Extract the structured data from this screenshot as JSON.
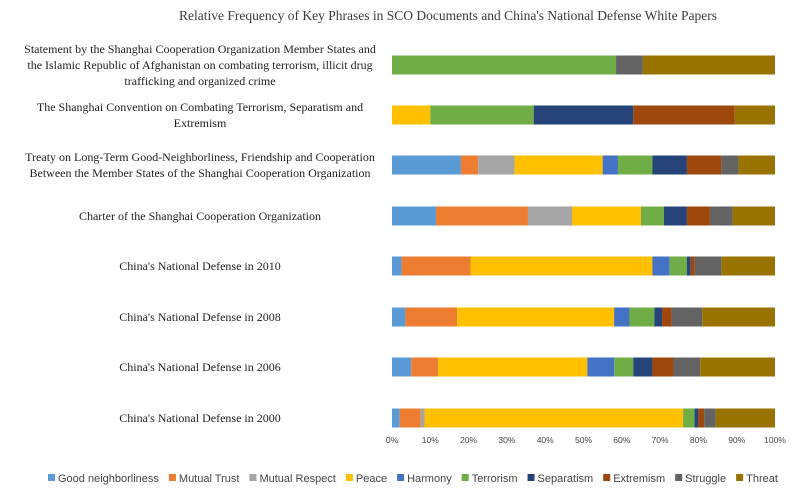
{
  "chart_data": {
    "type": "bar",
    "orientation": "horizontal",
    "stacked": "percent",
    "title": "Relative Frequency of Key Phrases in SCO Documents and China's National Defense White Papers",
    "xlabel": "",
    "ylabel": "",
    "xlim": [
      0,
      100
    ],
    "x_ticks": [
      "0%",
      "10%",
      "20%",
      "30%",
      "40%",
      "50%",
      "60%",
      "70%",
      "80%",
      "90%",
      "100%"
    ],
    "grid": false,
    "legend_position": "bottom",
    "categories": [
      [
        "Statement by the Shanghai Cooperation Organization Member States and",
        "the Islamic Republic of Afghanistan on combating terrorism, illicit drug",
        "trafficking and organized crime"
      ],
      [
        "The Shanghai Convention on Combating Terrorism, Separatism and",
        "Extremism"
      ],
      [
        "Treaty on Long-Term Good-Neighborliness, Friendship and Cooperation",
        "Between the Member States of the Shanghai Cooperation Organization"
      ],
      [
        "Charter of the Shanghai Cooperation Organization"
      ],
      [
        "China's National Defense in 2010"
      ],
      [
        "China's National Defense in 2008"
      ],
      [
        "China's National Defense in 2006"
      ],
      [
        "China's National Defense in 2000"
      ]
    ],
    "series": [
      {
        "name": "Good neighborliness",
        "color": "#5b9bd5",
        "values": [
          0,
          0,
          18,
          11.5,
          2.5,
          3.5,
          5,
          2
        ]
      },
      {
        "name": "Mutual Trust",
        "color": "#ed7d31",
        "values": [
          0,
          0,
          4.5,
          24,
          18,
          13.5,
          7,
          5.5
        ]
      },
      {
        "name": "Mutual Respect",
        "color": "#a5a5a5",
        "values": [
          0,
          0,
          9.5,
          11.5,
          0,
          0,
          0,
          1
        ]
      },
      {
        "name": "Peace",
        "color": "#ffc000",
        "values": [
          0,
          10,
          23,
          18,
          47.5,
          41,
          39,
          67.5
        ]
      },
      {
        "name": "Harmony",
        "color": "#4472c4",
        "values": [
          0,
          0,
          4,
          0,
          4.5,
          4,
          7,
          0
        ]
      },
      {
        "name": "Terrorism",
        "color": "#70ad47",
        "values": [
          58.5,
          27,
          9,
          6,
          4.5,
          6.5,
          5,
          3
        ]
      },
      {
        "name": "Separatism",
        "color": "#264478",
        "values": [
          0,
          26,
          9,
          6,
          1,
          2,
          5,
          1
        ]
      },
      {
        "name": "Extremism",
        "color": "#9e480e",
        "values": [
          0,
          26.5,
          9,
          6,
          1,
          2.5,
          5.5,
          1.5
        ]
      },
      {
        "name": "Struggle",
        "color": "#636363",
        "values": [
          7,
          0,
          4.5,
          6,
          7,
          8,
          7,
          3
        ]
      },
      {
        "name": "Threat",
        "color": "#997300",
        "values": [
          34.5,
          10.5,
          9.5,
          11,
          14,
          19,
          19.5,
          15.5
        ]
      }
    ]
  }
}
